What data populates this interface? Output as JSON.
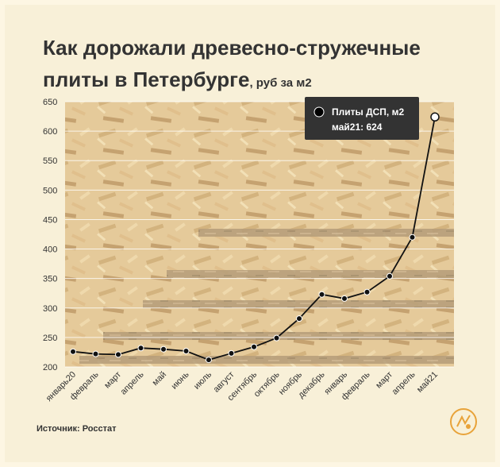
{
  "header": {
    "title_line1": "Как дорожали древесно-стружечные",
    "title_line2": "плиты в Петербурге",
    "title_unit": ", руб за м2"
  },
  "footer": {
    "source": "Источник: Росстат"
  },
  "colors": {
    "line": "#111111",
    "accent": "#e8a33a",
    "tooltip_bg": "#333333",
    "grid": "#ffffff"
  },
  "tooltip": {
    "series": "Плиты ДСП, м2",
    "value": "май21: 624"
  },
  "chart_data": {
    "type": "line",
    "categories": [
      "январь20",
      "февраль",
      "март",
      "апрель",
      "май",
      "июнь",
      "июль",
      "август",
      "сентябрь",
      "октябрь",
      "ноябрь",
      "декабрь",
      "январь",
      "февраль",
      "март",
      "апрель",
      "май21"
    ],
    "series": [
      {
        "values": [
          226,
          222,
          221,
          232,
          230,
          227,
          212,
          223,
          234,
          249,
          282,
          323,
          316,
          327,
          354,
          420,
          624
        ]
      }
    ],
    "y_ticks": [
      200,
      250,
      300,
      350,
      400,
      450,
      500,
      550,
      600,
      650
    ],
    "ylim": [
      200,
      650
    ],
    "grid": true,
    "highlight_index": 16
  }
}
